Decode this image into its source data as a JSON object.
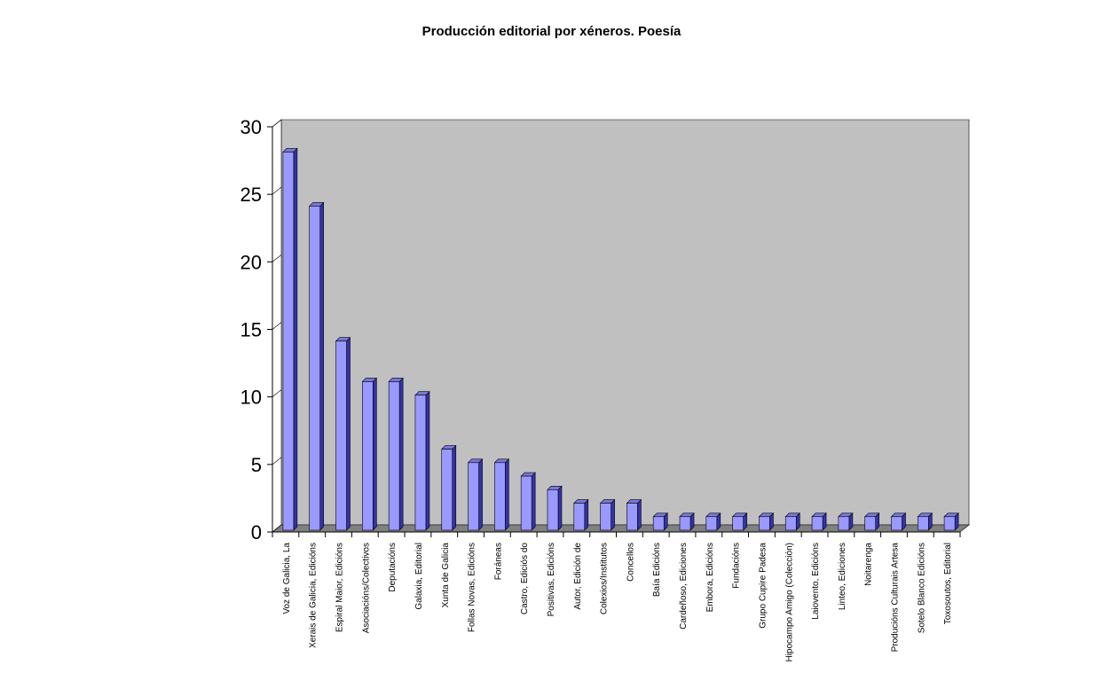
{
  "chart_data": {
    "type": "bar",
    "title": "Producción editorial por xéneros. Poesía",
    "xlabel": "",
    "ylabel": "",
    "ylim": [
      0,
      30
    ],
    "yticks": [
      "0",
      "5",
      "10",
      "15",
      "20",
      "25",
      "30"
    ],
    "grid": false,
    "style": "3d-bar",
    "colors": {
      "bar": "#9999ff",
      "bar_side": "#3333aa",
      "wall": "#c0c0c0",
      "floor": "#808080"
    },
    "categories": [
      "Voz de Galicia, La",
      "Xerais de Galicia, Edicións",
      "Espiral Maior, Edicións",
      "Asociacións/Colectivos",
      "Deputacións",
      "Galaxia, Editorial",
      "Xunta de Galicia",
      "Follas Novas, Edicións",
      "Foráneas",
      "Castro, Ediciós do",
      "Positivas, Edicións",
      "Autor, Edición de",
      "Colexios/Institutos",
      "Concellos",
      "Baía Edicións",
      "Cardeñoso, Ediciones",
      "Embora, Edicións",
      "Fundacións",
      "Grupo Cupire Padesa",
      "Hipocampo Amigo (Colección)",
      "Laiovento, Edicións",
      "Linteo, Ediciones",
      "Noitarenga",
      "Producións Culturais Artesa",
      "Sotelo Blanco Edicións",
      "Toxosoutos, Editorial"
    ],
    "values": [
      28,
      24,
      14,
      11,
      11,
      10,
      6,
      5,
      5,
      4,
      3,
      2,
      2,
      2,
      1,
      1,
      1,
      1,
      1,
      1,
      1,
      1,
      1,
      1,
      1,
      1
    ]
  }
}
